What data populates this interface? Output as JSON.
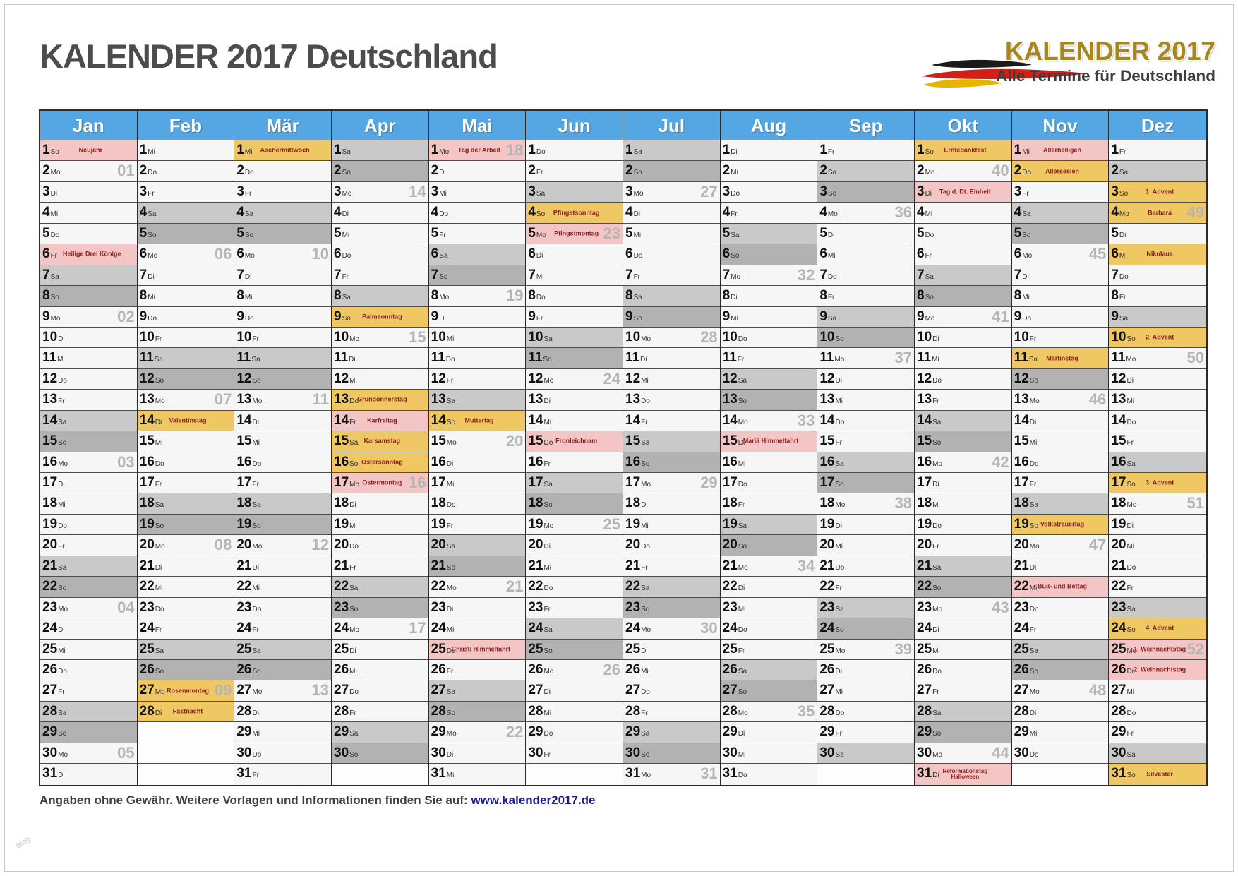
{
  "title": "KALENDER 2017 Deutschland",
  "logo": {
    "line1": "KALENDER 2017",
    "line2": "Alle Termine für Deutschland",
    "brush_colors": {
      "black": "#1a1a1a",
      "red": "#d02018",
      "gold": "#e8b400"
    }
  },
  "footer": {
    "text": "Angaben ohne Gewähr. Weitere Vorlagen und Informationen finden Sie auf: ",
    "link": "www.kalender2017.de"
  },
  "watermark": "Blog",
  "colors": {
    "header_blue": "#55a7e3",
    "holiday_pink": "#f3c5c5",
    "holiday_yellow": "#efc763",
    "saturday_gray": "#c9c9c9",
    "sunday_gray": "#b2b2b2",
    "weekday_bg": "#f6f6f6",
    "holiday_text": "#8e1f1f",
    "week_number_gray": "#b5b5b5",
    "logo_gold": "#a8861e",
    "link_blue": "#1b1b8e"
  },
  "legend": {
    "day_format": "[day number][weekday abbrev]",
    "weekday_abbrevs": [
      "Mo",
      "Di",
      "Mi",
      "Do",
      "Fr",
      "Sa",
      "So"
    ]
  },
  "months": [
    {
      "name": "Jan",
      "days": [
        [
          "So",
          "",
          "Neujahr",
          "p"
        ],
        [
          "Mo",
          "01"
        ],
        [
          "Di"
        ],
        [
          "Mi"
        ],
        [
          "Do"
        ],
        [
          "Fr",
          "",
          "Heilige Drei Könige",
          "p"
        ],
        [
          "Sa"
        ],
        [
          "So"
        ],
        [
          "Mo",
          "02"
        ],
        [
          "Di"
        ],
        [
          "Mi"
        ],
        [
          "Do"
        ],
        [
          "Fr"
        ],
        [
          "Sa"
        ],
        [
          "So"
        ],
        [
          "Mo",
          "03"
        ],
        [
          "Di"
        ],
        [
          "Mi"
        ],
        [
          "Do"
        ],
        [
          "Fr"
        ],
        [
          "Sa"
        ],
        [
          "So"
        ],
        [
          "Mo",
          "04"
        ],
        [
          "Di"
        ],
        [
          "Mi"
        ],
        [
          "Do"
        ],
        [
          "Fr"
        ],
        [
          "Sa"
        ],
        [
          "So"
        ],
        [
          "Mo",
          "05"
        ],
        [
          "Di"
        ]
      ]
    },
    {
      "name": "Feb",
      "days": [
        [
          "Mi"
        ],
        [
          "Do"
        ],
        [
          "Fr"
        ],
        [
          "Sa"
        ],
        [
          "So"
        ],
        [
          "Mo",
          "06"
        ],
        [
          "Di"
        ],
        [
          "Mi"
        ],
        [
          "Do"
        ],
        [
          "Fr"
        ],
        [
          "Sa"
        ],
        [
          "So"
        ],
        [
          "Mo",
          "07"
        ],
        [
          "Di",
          "",
          "Valentinstag",
          "y"
        ],
        [
          "Mi"
        ],
        [
          "Do"
        ],
        [
          "Fr"
        ],
        [
          "Sa"
        ],
        [
          "So"
        ],
        [
          "Mo",
          "08"
        ],
        [
          "Di"
        ],
        [
          "Mi"
        ],
        [
          "Do"
        ],
        [
          "Fr"
        ],
        [
          "Sa"
        ],
        [
          "So"
        ],
        [
          "Mo",
          "09",
          "Rosenmontag",
          "y"
        ],
        [
          "Di",
          "",
          "Fastnacht",
          "y"
        ]
      ]
    },
    {
      "name": "Mär",
      "days": [
        [
          "Mi",
          "",
          "Aschermittwoch",
          "y"
        ],
        [
          "Do"
        ],
        [
          "Fr"
        ],
        [
          "Sa"
        ],
        [
          "So"
        ],
        [
          "Mo",
          "10"
        ],
        [
          "Di"
        ],
        [
          "Mi"
        ],
        [
          "Do"
        ],
        [
          "Fr"
        ],
        [
          "Sa"
        ],
        [
          "So"
        ],
        [
          "Mo",
          "11"
        ],
        [
          "Di"
        ],
        [
          "Mi"
        ],
        [
          "Do"
        ],
        [
          "Fr"
        ],
        [
          "Sa"
        ],
        [
          "So"
        ],
        [
          "Mo",
          "12"
        ],
        [
          "Di"
        ],
        [
          "Mi"
        ],
        [
          "Do"
        ],
        [
          "Fr"
        ],
        [
          "Sa"
        ],
        [
          "So"
        ],
        [
          "Mo",
          "13"
        ],
        [
          "Di"
        ],
        [
          "Mi"
        ],
        [
          "Do"
        ],
        [
          "Fr"
        ]
      ]
    },
    {
      "name": "Apr",
      "days": [
        [
          "Sa"
        ],
        [
          "So"
        ],
        [
          "Mo",
          "14"
        ],
        [
          "Di"
        ],
        [
          "Mi"
        ],
        [
          "Do"
        ],
        [
          "Fr"
        ],
        [
          "Sa"
        ],
        [
          "So",
          "",
          "Palmsonntag",
          "y"
        ],
        [
          "Mo",
          "15"
        ],
        [
          "Di"
        ],
        [
          "Mi"
        ],
        [
          "Do",
          "",
          "Gründonnerstag",
          "y"
        ],
        [
          "Fr",
          "",
          "Karfreitag",
          "p"
        ],
        [
          "Sa",
          "",
          "Karsamstag",
          "y"
        ],
        [
          "So",
          "",
          "Ostersonntag",
          "y"
        ],
        [
          "Mo",
          "16",
          "Ostermontag",
          "p"
        ],
        [
          "Di"
        ],
        [
          "Mi"
        ],
        [
          "Do"
        ],
        [
          "Fr"
        ],
        [
          "Sa"
        ],
        [
          "So"
        ],
        [
          "Mo",
          "17"
        ],
        [
          "Di"
        ],
        [
          "Mi"
        ],
        [
          "Do"
        ],
        [
          "Fr"
        ],
        [
          "Sa"
        ],
        [
          "So"
        ]
      ]
    },
    {
      "name": "Mai",
      "days": [
        [
          "Mo",
          "18",
          "Tag der Arbeit",
          "p"
        ],
        [
          "Di"
        ],
        [
          "Mi"
        ],
        [
          "Do"
        ],
        [
          "Fr"
        ],
        [
          "Sa"
        ],
        [
          "So"
        ],
        [
          "Mo",
          "19"
        ],
        [
          "Di"
        ],
        [
          "Mi"
        ],
        [
          "Do"
        ],
        [
          "Fr"
        ],
        [
          "Sa"
        ],
        [
          "So",
          "",
          "Muttertag",
          "y"
        ],
        [
          "Mo",
          "20"
        ],
        [
          "Di"
        ],
        [
          "Mi"
        ],
        [
          "Do"
        ],
        [
          "Fr"
        ],
        [
          "Sa"
        ],
        [
          "So"
        ],
        [
          "Mo",
          "21"
        ],
        [
          "Di"
        ],
        [
          "Mi"
        ],
        [
          "Do",
          "",
          "Christi Himmelfahrt",
          "p"
        ],
        [
          "Fr"
        ],
        [
          "Sa"
        ],
        [
          "So"
        ],
        [
          "Mo",
          "22"
        ],
        [
          "Di"
        ],
        [
          "Mi"
        ]
      ]
    },
    {
      "name": "Jun",
      "days": [
        [
          "Do"
        ],
        [
          "Fr"
        ],
        [
          "Sa"
        ],
        [
          "So",
          "",
          "Pfingstsonntag",
          "y"
        ],
        [
          "Mo",
          "23",
          "Pfingstmontag",
          "p"
        ],
        [
          "Di"
        ],
        [
          "Mi"
        ],
        [
          "Do"
        ],
        [
          "Fr"
        ],
        [
          "Sa"
        ],
        [
          "So"
        ],
        [
          "Mo",
          "24"
        ],
        [
          "Di"
        ],
        [
          "Mi"
        ],
        [
          "Do",
          "",
          "Fronleichnam",
          "p"
        ],
        [
          "Fr"
        ],
        [
          "Sa"
        ],
        [
          "So"
        ],
        [
          "Mo",
          "25"
        ],
        [
          "Di"
        ],
        [
          "Mi"
        ],
        [
          "Do"
        ],
        [
          "Fr"
        ],
        [
          "Sa"
        ],
        [
          "So"
        ],
        [
          "Mo",
          "26"
        ],
        [
          "Di"
        ],
        [
          "Mi"
        ],
        [
          "Do"
        ],
        [
          "Fr"
        ]
      ]
    },
    {
      "name": "Jul",
      "days": [
        [
          "Sa"
        ],
        [
          "So"
        ],
        [
          "Mo",
          "27"
        ],
        [
          "Di"
        ],
        [
          "Mi"
        ],
        [
          "Do"
        ],
        [
          "Fr"
        ],
        [
          "Sa"
        ],
        [
          "So"
        ],
        [
          "Mo",
          "28"
        ],
        [
          "Di"
        ],
        [
          "Mi"
        ],
        [
          "Do"
        ],
        [
          "Fr"
        ],
        [
          "Sa"
        ],
        [
          "So"
        ],
        [
          "Mo",
          "29"
        ],
        [
          "Di"
        ],
        [
          "Mi"
        ],
        [
          "Do"
        ],
        [
          "Fr"
        ],
        [
          "Sa"
        ],
        [
          "So"
        ],
        [
          "Mo",
          "30"
        ],
        [
          "Di"
        ],
        [
          "Mi"
        ],
        [
          "Do"
        ],
        [
          "Fr"
        ],
        [
          "Sa"
        ],
        [
          "So"
        ],
        [
          "Mo",
          "31"
        ]
      ]
    },
    {
      "name": "Aug",
      "days": [
        [
          "Di"
        ],
        [
          "Mi"
        ],
        [
          "Do"
        ],
        [
          "Fr"
        ],
        [
          "Sa"
        ],
        [
          "So"
        ],
        [
          "Mo",
          "32"
        ],
        [
          "Di"
        ],
        [
          "Mi"
        ],
        [
          "Do"
        ],
        [
          "Fr"
        ],
        [
          "Sa"
        ],
        [
          "So"
        ],
        [
          "Mo",
          "33"
        ],
        [
          "Di",
          "",
          "Mariä Himmelfahrt",
          "p"
        ],
        [
          "Mi"
        ],
        [
          "Do"
        ],
        [
          "Fr"
        ],
        [
          "Sa"
        ],
        [
          "So"
        ],
        [
          "Mo",
          "34"
        ],
        [
          "Di"
        ],
        [
          "Mi"
        ],
        [
          "Do"
        ],
        [
          "Fr"
        ],
        [
          "Sa"
        ],
        [
          "So"
        ],
        [
          "Mo",
          "35"
        ],
        [
          "Di"
        ],
        [
          "Mi"
        ],
        [
          "Do"
        ]
      ]
    },
    {
      "name": "Sep",
      "days": [
        [
          "Fr"
        ],
        [
          "Sa"
        ],
        [
          "So"
        ],
        [
          "Mo",
          "36"
        ],
        [
          "Di"
        ],
        [
          "Mi"
        ],
        [
          "Do"
        ],
        [
          "Fr"
        ],
        [
          "Sa"
        ],
        [
          "So"
        ],
        [
          "Mo",
          "37"
        ],
        [
          "Di"
        ],
        [
          "Mi"
        ],
        [
          "Do"
        ],
        [
          "Fr"
        ],
        [
          "Sa"
        ],
        [
          "So"
        ],
        [
          "Mo",
          "38"
        ],
        [
          "Di"
        ],
        [
          "Mi"
        ],
        [
          "Do"
        ],
        [
          "Fr"
        ],
        [
          "Sa"
        ],
        [
          "So"
        ],
        [
          "Mo",
          "39"
        ],
        [
          "Di"
        ],
        [
          "Mi"
        ],
        [
          "Do"
        ],
        [
          "Fr"
        ],
        [
          "Sa"
        ]
      ]
    },
    {
      "name": "Okt",
      "days": [
        [
          "So",
          "",
          "Erntedankfest",
          "y"
        ],
        [
          "Mo",
          "40"
        ],
        [
          "Di",
          "",
          "Tag d. Dt. Einheit",
          "p"
        ],
        [
          "Mi"
        ],
        [
          "Do"
        ],
        [
          "Fr"
        ],
        [
          "Sa"
        ],
        [
          "So"
        ],
        [
          "Mo",
          "41"
        ],
        [
          "Di"
        ],
        [
          "Mi"
        ],
        [
          "Do"
        ],
        [
          "Fr"
        ],
        [
          "Sa"
        ],
        [
          "So"
        ],
        [
          "Mo",
          "42"
        ],
        [
          "Di"
        ],
        [
          "Mi"
        ],
        [
          "Do"
        ],
        [
          "Fr"
        ],
        [
          "Sa"
        ],
        [
          "So"
        ],
        [
          "Mo",
          "43"
        ],
        [
          "Di"
        ],
        [
          "Mi"
        ],
        [
          "Do"
        ],
        [
          "Fr"
        ],
        [
          "Sa"
        ],
        [
          "So"
        ],
        [
          "Mo",
          "44"
        ],
        [
          "Di",
          "",
          "Reformationstag|Halloween",
          "p"
        ]
      ]
    },
    {
      "name": "Nov",
      "days": [
        [
          "Mi",
          "",
          "Allerheiligen",
          "p"
        ],
        [
          "Do",
          "",
          "Allerseelen",
          "y"
        ],
        [
          "Fr"
        ],
        [
          "Sa"
        ],
        [
          "So"
        ],
        [
          "Mo",
          "45"
        ],
        [
          "Di"
        ],
        [
          "Mi"
        ],
        [
          "Do"
        ],
        [
          "Fr"
        ],
        [
          "Sa",
          "",
          "Martinstag",
          "y"
        ],
        [
          "So"
        ],
        [
          "Mo",
          "46"
        ],
        [
          "Di"
        ],
        [
          "Mi"
        ],
        [
          "Do"
        ],
        [
          "Fr"
        ],
        [
          "Sa"
        ],
        [
          "So",
          "",
          "Volkstrauertag",
          "y"
        ],
        [
          "Mo",
          "47"
        ],
        [
          "Di"
        ],
        [
          "Mi",
          "",
          "Buß- und Bettag",
          "p"
        ],
        [
          "Do"
        ],
        [
          "Fr"
        ],
        [
          "Sa"
        ],
        [
          "So"
        ],
        [
          "Mo",
          "48"
        ],
        [
          "Di"
        ],
        [
          "Mi"
        ],
        [
          "Do"
        ]
      ]
    },
    {
      "name": "Dez",
      "days": [
        [
          "Fr"
        ],
        [
          "Sa"
        ],
        [
          "So",
          "",
          "1. Advent",
          "y"
        ],
        [
          "Mo",
          "49",
          "Barbara",
          "y"
        ],
        [
          "Di"
        ],
        [
          "Mi",
          "",
          "Nikolaus",
          "y"
        ],
        [
          "Do"
        ],
        [
          "Fr"
        ],
        [
          "Sa"
        ],
        [
          "So",
          "",
          "2. Advent",
          "y"
        ],
        [
          "Mo",
          "50"
        ],
        [
          "Di"
        ],
        [
          "Mi"
        ],
        [
          "Do"
        ],
        [
          "Fr"
        ],
        [
          "Sa"
        ],
        [
          "So",
          "",
          "3. Advent",
          "y"
        ],
        [
          "Mo",
          "51"
        ],
        [
          "Di"
        ],
        [
          "Mi"
        ],
        [
          "Do"
        ],
        [
          "Fr"
        ],
        [
          "Sa"
        ],
        [
          "So",
          "",
          "4. Advent",
          "y"
        ],
        [
          "Mo",
          "52",
          "1. Weihnachtstag",
          "p"
        ],
        [
          "Di",
          "",
          "2. Weihnachtstag",
          "p"
        ],
        [
          "Mi"
        ],
        [
          "Do"
        ],
        [
          "Fr"
        ],
        [
          "Sa"
        ],
        [
          "So",
          "",
          "Silvester",
          "y"
        ]
      ]
    }
  ]
}
